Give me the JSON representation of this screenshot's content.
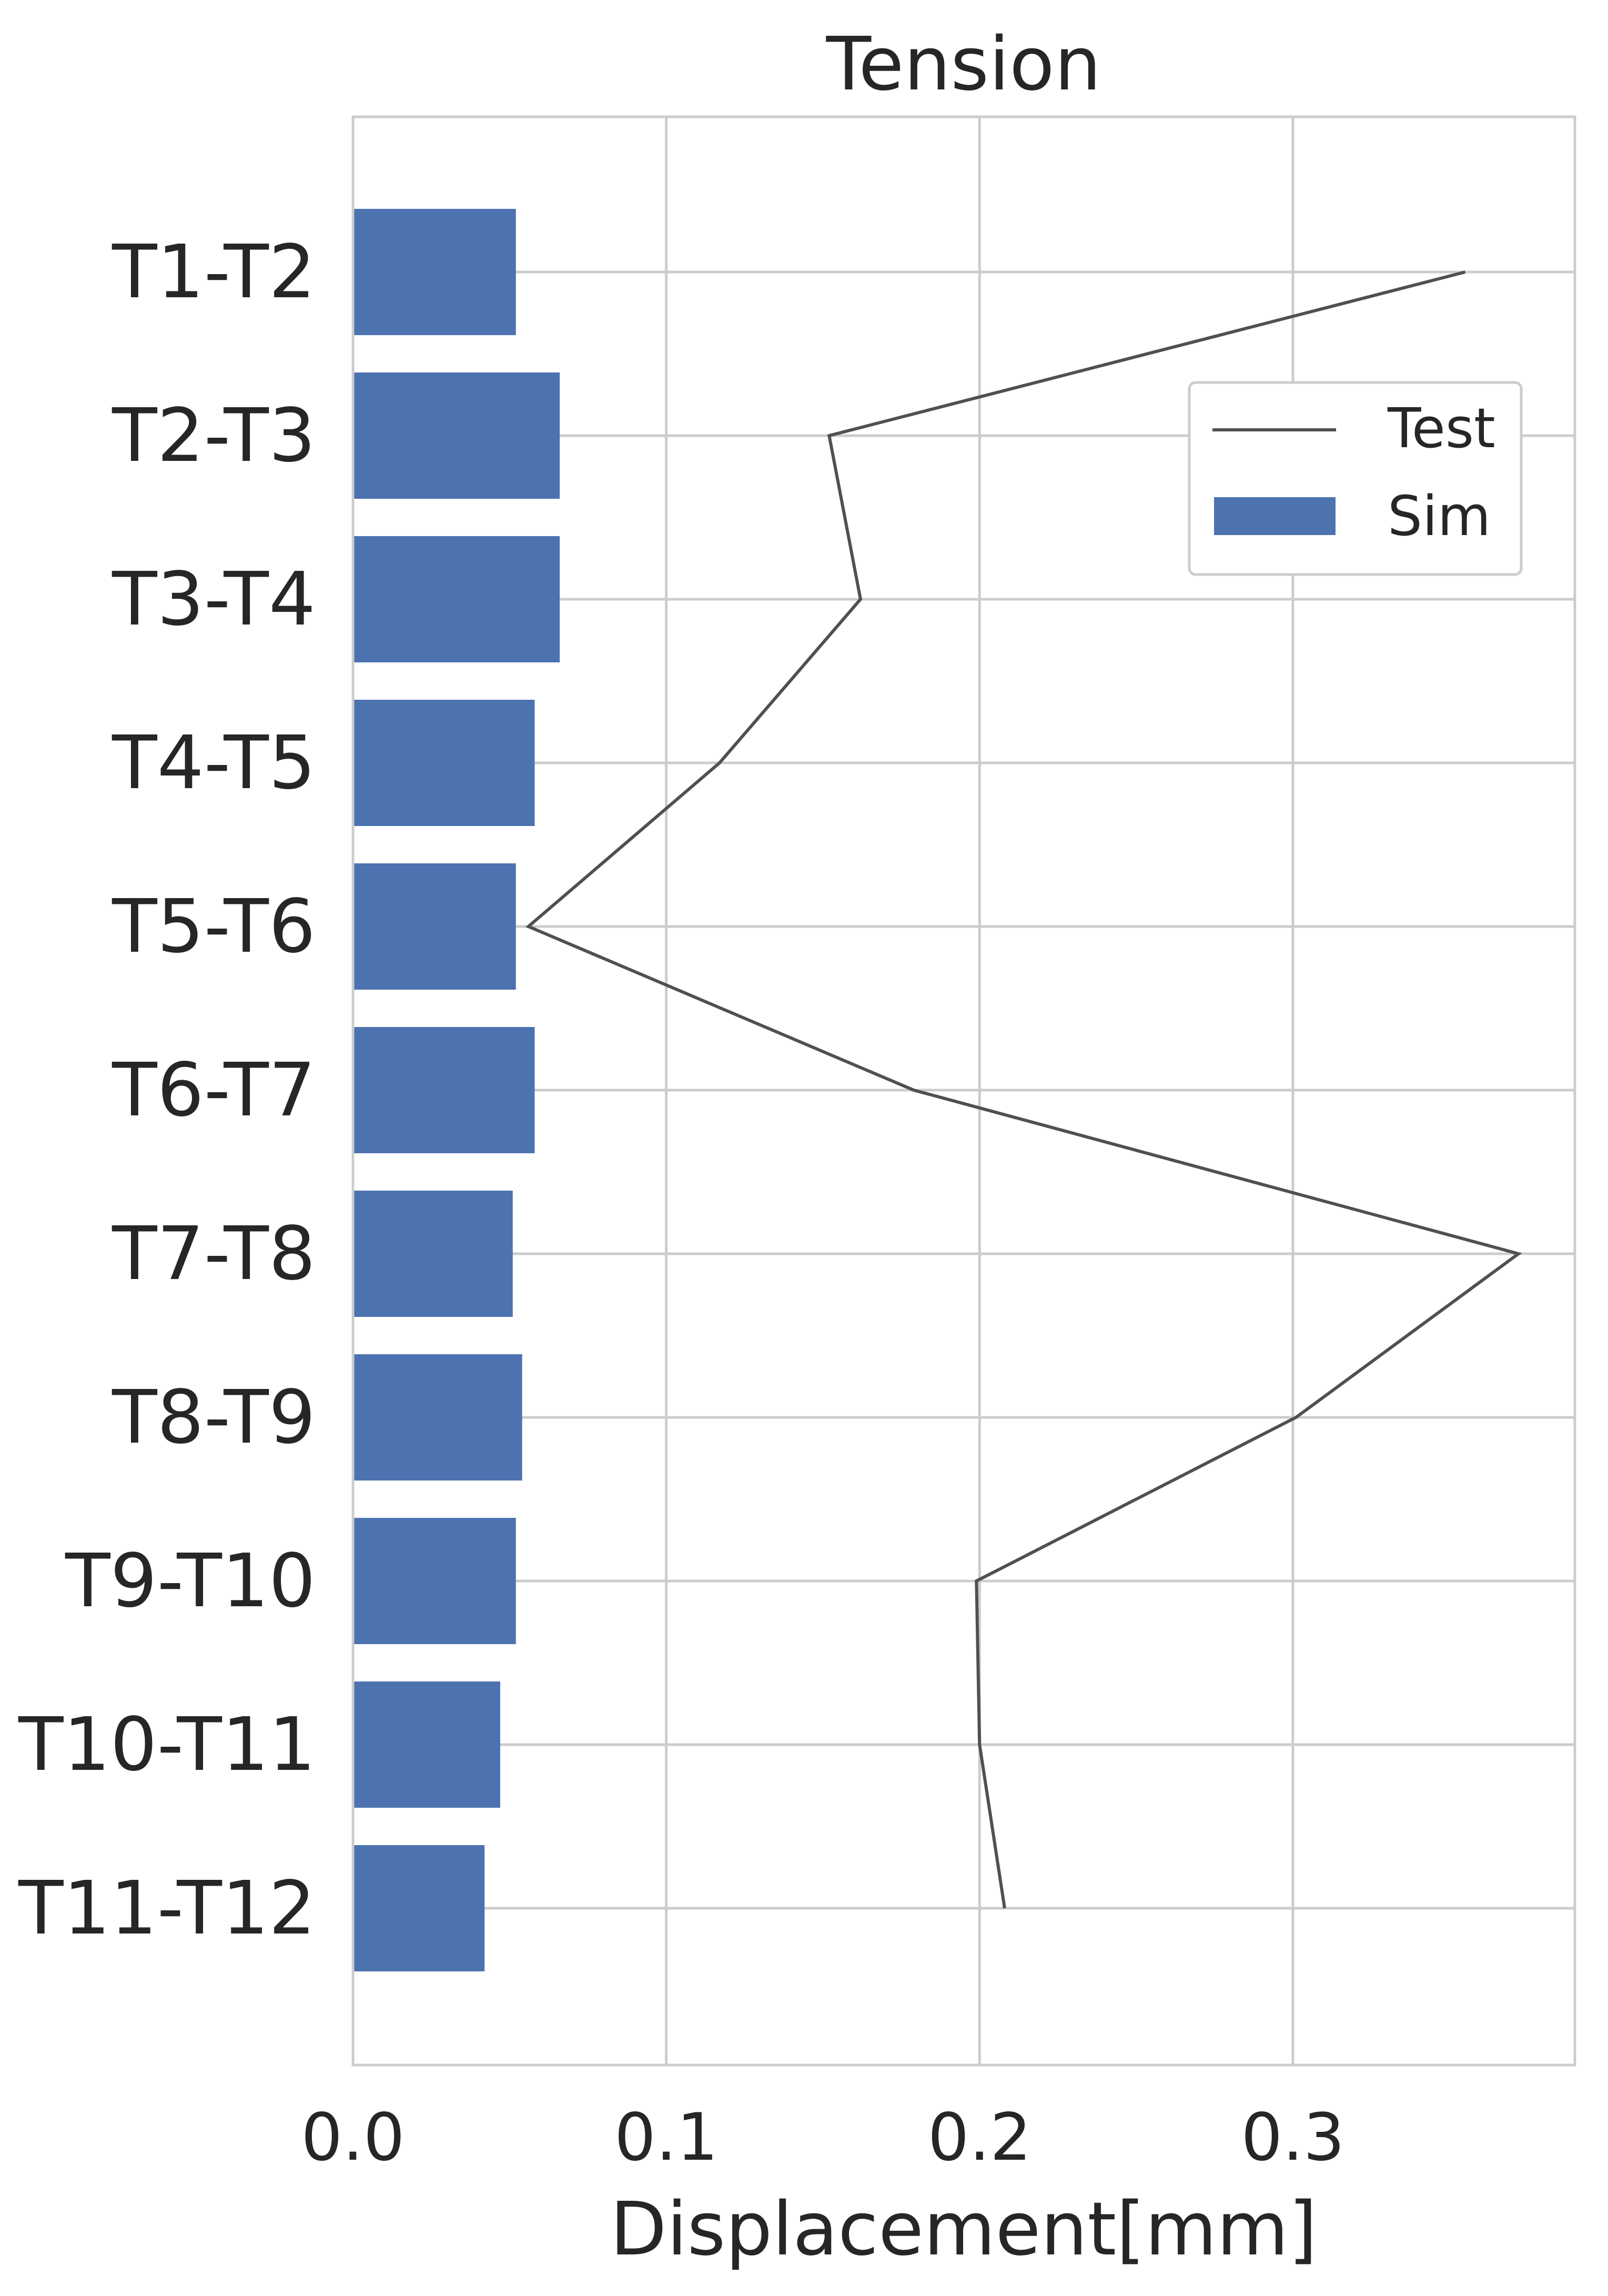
{
  "chart_data": {
    "type": "bar",
    "orientation": "horizontal",
    "title": "Tension",
    "xlabel": "Displacement[mm]",
    "ylabel": "",
    "xlim": [
      0,
      0.39
    ],
    "xticks": [
      0.0,
      0.1,
      0.2,
      0.3
    ],
    "xtick_labels": [
      "0.0",
      "0.1",
      "0.2",
      "0.3"
    ],
    "grid": true,
    "legend_position": "upper-right",
    "categories": [
      "T1-T2",
      "T2-T3",
      "T3-T4",
      "T4-T5",
      "T5-T6",
      "T6-T7",
      "T7-T8",
      "T8-T9",
      "T9-T10",
      "T10-T11",
      "T11-T12"
    ],
    "series": [
      {
        "name": "Sim",
        "kind": "bar",
        "color": "#4c72b0",
        "values": [
          0.052,
          0.066,
          0.066,
          0.058,
          0.052,
          0.058,
          0.051,
          0.054,
          0.052,
          0.047,
          0.042
        ]
      },
      {
        "name": "Test",
        "kind": "line",
        "color": "#505050",
        "values": [
          0.355,
          0.152,
          0.162,
          0.117,
          0.056,
          0.179,
          0.372,
          0.301,
          0.199,
          0.2,
          0.208
        ]
      }
    ]
  }
}
